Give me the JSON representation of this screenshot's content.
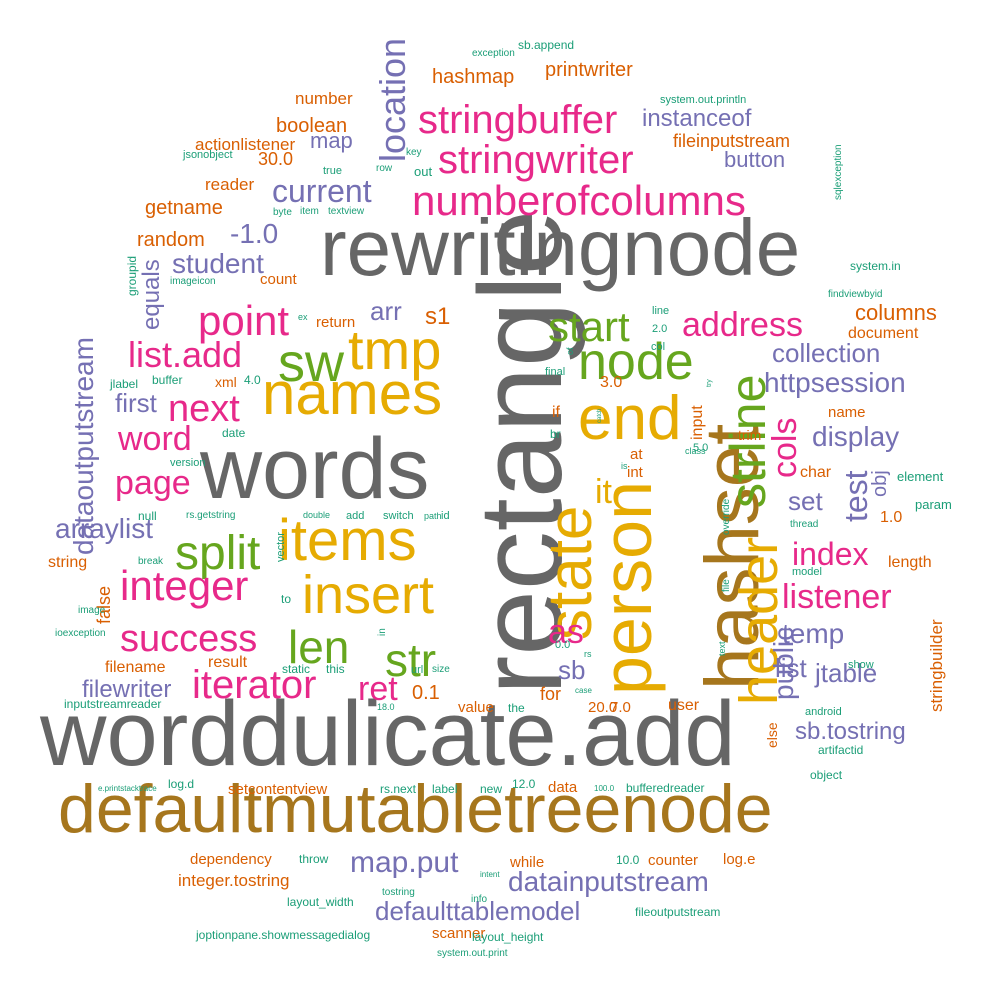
{
  "colors": {
    "gray": "#666666",
    "olive": "#A6761D",
    "gold": "#E6AB02",
    "magenta": "#E7298A",
    "green": "#66A61E",
    "purple": "#7570B3",
    "orange": "#D95F02",
    "teal": "#1B9E77"
  },
  "words": [
    {
      "text": "worddulicate.add",
      "color": "gray"
    },
    {
      "text": "rewritingnode",
      "color": "gray"
    },
    {
      "text": "words",
      "color": "gray"
    },
    {
      "text": "rectangle",
      "color": "gray"
    },
    {
      "text": "defaultmutabletreenode",
      "color": "olive"
    },
    {
      "text": "hashset",
      "color": "olive"
    },
    {
      "text": "person",
      "color": "gold"
    },
    {
      "text": "state",
      "color": "gold"
    },
    {
      "text": "names",
      "color": "gold"
    },
    {
      "text": "items",
      "color": "gold"
    },
    {
      "text": "insert",
      "color": "gold"
    },
    {
      "text": "end",
      "color": "gold"
    },
    {
      "text": "tmp",
      "color": "gold"
    },
    {
      "text": "header",
      "color": "gold"
    },
    {
      "text": "it",
      "color": "gold"
    },
    {
      "text": "as",
      "color": "magenta"
    },
    {
      "text": "strline",
      "color": "green"
    },
    {
      "text": "numberofcolumns",
      "color": "magenta"
    },
    {
      "text": "stringwriter",
      "color": "magenta"
    },
    {
      "text": "stringbuffer",
      "color": "magenta"
    },
    {
      "text": "node",
      "color": "green"
    },
    {
      "text": "start",
      "color": "green"
    },
    {
      "text": "sw",
      "color": "green"
    },
    {
      "text": "split",
      "color": "green"
    },
    {
      "text": "len",
      "color": "green"
    },
    {
      "text": "str",
      "color": "green"
    },
    {
      "text": "point",
      "color": "magenta"
    },
    {
      "text": "list.add",
      "color": "magenta"
    },
    {
      "text": "next",
      "color": "magenta"
    },
    {
      "text": "word",
      "color": "magenta"
    },
    {
      "text": "page",
      "color": "magenta"
    },
    {
      "text": "integer",
      "color": "magenta"
    },
    {
      "text": "success",
      "color": "magenta"
    },
    {
      "text": "iterator",
      "color": "magenta"
    },
    {
      "text": "ret",
      "color": "magenta"
    },
    {
      "text": "address",
      "color": "magenta"
    },
    {
      "text": "cols",
      "color": "magenta"
    },
    {
      "text": "index",
      "color": "magenta"
    },
    {
      "text": "listener",
      "color": "magenta"
    },
    {
      "text": "s1",
      "color": "orange"
    },
    {
      "text": "location",
      "color": "purple"
    },
    {
      "text": "current",
      "color": "purple"
    },
    {
      "text": "student",
      "color": "purple"
    },
    {
      "text": "-1.0",
      "color": "purple"
    },
    {
      "text": "arr",
      "color": "purple"
    },
    {
      "text": "first",
      "color": "purple"
    },
    {
      "text": "arraylist",
      "color": "purple"
    },
    {
      "text": "dataoutputstream",
      "color": "purple"
    },
    {
      "text": "filewriter",
      "color": "purple"
    },
    {
      "text": "map.put",
      "color": "purple"
    },
    {
      "text": "datainputstream",
      "color": "purple"
    },
    {
      "text": "defaulttablemodel",
      "color": "purple"
    },
    {
      "text": "collection",
      "color": "purple"
    },
    {
      "text": "httpsession",
      "color": "purple"
    },
    {
      "text": "display",
      "color": "purple"
    },
    {
      "text": "set",
      "color": "purple"
    },
    {
      "text": "test",
      "color": "purple"
    },
    {
      "text": "temp",
      "color": "purple"
    },
    {
      "text": "public",
      "color": "purple"
    },
    {
      "text": "list",
      "color": "purple"
    },
    {
      "text": "jtable",
      "color": "purple"
    },
    {
      "text": "sb.tostring",
      "color": "purple"
    },
    {
      "text": "sb",
      "color": "purple"
    },
    {
      "text": "instanceof",
      "color": "purple"
    },
    {
      "text": "button",
      "color": "purple"
    },
    {
      "text": "map",
      "color": "purple"
    },
    {
      "text": "equals",
      "color": "purple"
    },
    {
      "text": "obj",
      "color": "purple"
    },
    {
      "text": "printwriter",
      "color": "orange"
    },
    {
      "text": "hashmap",
      "color": "orange"
    },
    {
      "text": "number",
      "color": "orange"
    },
    {
      "text": "boolean",
      "color": "orange"
    },
    {
      "text": "actionlistener",
      "color": "orange"
    },
    {
      "text": "30.0",
      "color": "orange"
    },
    {
      "text": "reader",
      "color": "orange"
    },
    {
      "text": "getname",
      "color": "orange"
    },
    {
      "text": "random",
      "color": "orange"
    },
    {
      "text": "fileinputstream",
      "color": "orange"
    },
    {
      "text": "columns",
      "color": "orange"
    },
    {
      "text": "document",
      "color": "orange"
    },
    {
      "text": "return",
      "color": "orange"
    },
    {
      "text": "count",
      "color": "orange"
    },
    {
      "text": "xml",
      "color": "orange"
    },
    {
      "text": "3.0",
      "color": "orange"
    },
    {
      "text": "if",
      "color": "orange"
    },
    {
      "text": "at",
      "color": "orange"
    },
    {
      "text": "int",
      "color": "orange"
    },
    {
      "text": "input",
      "color": "orange"
    },
    {
      "text": "name",
      "color": "orange"
    },
    {
      "text": "trim",
      "color": "orange"
    },
    {
      "text": "char",
      "color": "orange"
    },
    {
      "text": "1.0",
      "color": "orange"
    },
    {
      "text": "length",
      "color": "orange"
    },
    {
      "text": "stringbuilder",
      "color": "orange"
    },
    {
      "text": "0.1",
      "color": "orange"
    },
    {
      "text": "for",
      "color": "orange"
    },
    {
      "text": "false",
      "color": "orange"
    },
    {
      "text": "string",
      "color": "orange"
    },
    {
      "text": "filename",
      "color": "orange"
    },
    {
      "text": "result",
      "color": "orange"
    },
    {
      "text": "value",
      "color": "orange"
    },
    {
      "text": "20.0",
      "color": "orange"
    },
    {
      "text": "7.0",
      "color": "orange"
    },
    {
      "text": "user",
      "color": "orange"
    },
    {
      "text": "else",
      "color": "orange"
    },
    {
      "text": "data",
      "color": "orange"
    },
    {
      "text": "setcontentview",
      "color": "orange"
    },
    {
      "text": "dependency",
      "color": "orange"
    },
    {
      "text": "integer.tostring",
      "color": "orange"
    },
    {
      "text": "while",
      "color": "orange"
    },
    {
      "text": "counter",
      "color": "orange"
    },
    {
      "text": "log.e",
      "color": "orange"
    },
    {
      "text": "scanner",
      "color": "orange"
    },
    {
      "text": "sb.append",
      "color": "teal"
    },
    {
      "text": "exception",
      "color": "teal"
    },
    {
      "text": "system.out.println",
      "color": "teal"
    },
    {
      "text": "jsonobject",
      "color": "teal"
    },
    {
      "text": "key",
      "color": "teal"
    },
    {
      "text": "out",
      "color": "teal"
    },
    {
      "text": "true",
      "color": "teal"
    },
    {
      "text": "row",
      "color": "teal"
    },
    {
      "text": "byte",
      "color": "teal"
    },
    {
      "text": "item",
      "color": "teal"
    },
    {
      "text": "textview",
      "color": "teal"
    },
    {
      "text": "sqlexception",
      "color": "teal"
    },
    {
      "text": "system.in",
      "color": "teal"
    },
    {
      "text": "findviewbyid",
      "color": "teal"
    },
    {
      "text": "groupid",
      "color": "teal"
    },
    {
      "text": "imageicon",
      "color": "teal"
    },
    {
      "text": "ex",
      "color": "teal"
    },
    {
      "text": "line",
      "color": "teal"
    },
    {
      "text": "2.0",
      "color": "teal"
    },
    {
      "text": "col",
      "color": "teal"
    },
    {
      "text": "of",
      "color": "teal"
    },
    {
      "text": "final",
      "color": "teal"
    },
    {
      "text": "try",
      "color": "teal"
    },
    {
      "text": "catch",
      "color": "teal"
    },
    {
      "text": "class",
      "color": "teal"
    },
    {
      "text": "5.0",
      "color": "teal"
    },
    {
      "text": "is",
      "color": "teal"
    },
    {
      "text": "br",
      "color": "teal"
    },
    {
      "text": "jlabel",
      "color": "teal"
    },
    {
      "text": "buffer",
      "color": "teal"
    },
    {
      "text": "4.0",
      "color": "teal"
    },
    {
      "text": "date",
      "color": "teal"
    },
    {
      "text": "version",
      "color": "teal"
    },
    {
      "text": "element",
      "color": "teal"
    },
    {
      "text": "param",
      "color": "teal"
    },
    {
      "text": "thread",
      "color": "teal"
    },
    {
      "text": "override",
      "color": "teal"
    },
    {
      "text": "null",
      "color": "teal"
    },
    {
      "text": "rs.getstring",
      "color": "teal"
    },
    {
      "text": "double",
      "color": "teal"
    },
    {
      "text": "add",
      "color": "teal"
    },
    {
      "text": "switch",
      "color": "teal"
    },
    {
      "text": "path",
      "color": "teal"
    },
    {
      "text": "id",
      "color": "teal"
    },
    {
      "text": "vector",
      "color": "teal"
    },
    {
      "text": "break",
      "color": "teal"
    },
    {
      "text": "image",
      "color": "teal"
    },
    {
      "text": "to",
      "color": "teal"
    },
    {
      "text": "in",
      "color": "teal"
    },
    {
      "text": "ioexception",
      "color": "teal"
    },
    {
      "text": "file",
      "color": "teal"
    },
    {
      "text": "model",
      "color": "teal"
    },
    {
      "text": "text",
      "color": "teal"
    },
    {
      "text": "rs",
      "color": "teal"
    },
    {
      "text": "0.0",
      "color": "teal"
    },
    {
      "text": "show",
      "color": "teal"
    },
    {
      "text": "static",
      "color": "teal"
    },
    {
      "text": "this",
      "color": "teal"
    },
    {
      "text": "url",
      "color": "teal"
    },
    {
      "text": "size",
      "color": "teal"
    },
    {
      "text": "case",
      "color": "teal"
    },
    {
      "text": "android",
      "color": "teal"
    },
    {
      "text": "inputstreamreader",
      "color": "teal"
    },
    {
      "text": "18.0",
      "color": "teal"
    },
    {
      "text": "the",
      "color": "teal"
    },
    {
      "text": "artifactid",
      "color": "teal"
    },
    {
      "text": "object",
      "color": "teal"
    },
    {
      "text": "log.d",
      "color": "teal"
    },
    {
      "text": "e.printstacktrace",
      "color": "teal"
    },
    {
      "text": "rs.next",
      "color": "teal"
    },
    {
      "text": "label",
      "color": "teal"
    },
    {
      "text": "new",
      "color": "teal"
    },
    {
      "text": "12.0",
      "color": "teal"
    },
    {
      "text": "100.0",
      "color": "teal"
    },
    {
      "text": "bufferedreader",
      "color": "teal"
    },
    {
      "text": "throw",
      "color": "teal"
    },
    {
      "text": "10.0",
      "color": "teal"
    },
    {
      "text": "intent",
      "color": "teal"
    },
    {
      "text": "tostring",
      "color": "teal"
    },
    {
      "text": "info",
      "color": "teal"
    },
    {
      "text": "layout_width",
      "color": "teal"
    },
    {
      "text": "joptionpane.showmessagedialog",
      "color": "teal"
    },
    {
      "text": "layout_height",
      "color": "teal"
    },
    {
      "text": "fileoutputstream",
      "color": "teal"
    },
    {
      "text": "system.out.print",
      "color": "teal"
    }
  ]
}
